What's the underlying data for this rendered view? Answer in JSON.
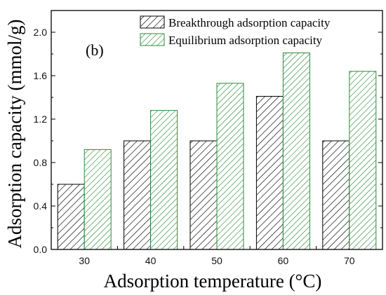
{
  "chart_data": {
    "type": "bar",
    "panel_label": "(b)",
    "xlabel": "Adsorption temperature (°C)",
    "ylabel": "Adsorption capacity (mmol/g)",
    "categories": [
      "30",
      "40",
      "50",
      "60",
      "70"
    ],
    "ylim": [
      0,
      2.2
    ],
    "yticks": [
      "0.0",
      "0.4",
      "0.8",
      "1.2",
      "1.6",
      "2.0"
    ],
    "grid": false,
    "legend_position": "top-right",
    "series": [
      {
        "name": "Breakthrough adsorption capacity",
        "values": [
          0.6,
          1.0,
          1.0,
          1.41,
          1.0
        ],
        "color": "#000000",
        "fill": "hatch-diagonal-black"
      },
      {
        "name": "Equilibrium adsorption capacity",
        "values": [
          0.92,
          1.28,
          1.53,
          1.81,
          1.64
        ],
        "color": "#2e8b3a",
        "fill": "hatch-diagonal-green"
      }
    ]
  }
}
